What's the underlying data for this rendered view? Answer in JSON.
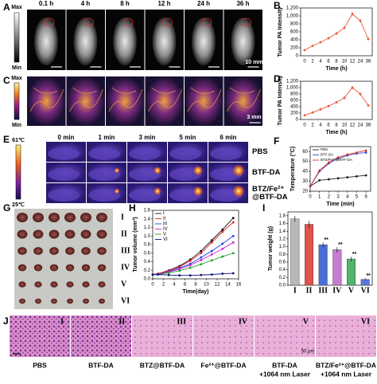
{
  "panel_labels": [
    "A",
    "B",
    "C",
    "D",
    "E",
    "F",
    "G",
    "H",
    "I",
    "J"
  ],
  "panel_a": {
    "times": [
      "0.1 h",
      "4 h",
      "8 h",
      "12 h",
      "24 h",
      "36 h"
    ],
    "colorbar": [
      "Max",
      "Min"
    ],
    "scale_bar": "10 mm"
  },
  "panel_c": {
    "colorbar": [
      "Max",
      "Min"
    ],
    "scale_bar": "3 mm"
  },
  "panel_e": {
    "times": [
      "0 min",
      "1 min",
      "3 min",
      "5 min",
      "6 min"
    ],
    "colorbar": [
      "61℃",
      "25℃"
    ],
    "rows": [
      [
        "PBS"
      ],
      [
        "BTF-DA"
      ],
      [
        "BTZ/Fe²⁺",
        "@BTF-DA"
      ]
    ]
  },
  "panel_g": {
    "groups": [
      "I",
      "II",
      "III",
      "IV",
      "V",
      "VI"
    ]
  },
  "panel_j": {
    "groups": [
      "I",
      "II",
      "III",
      "IV",
      "V",
      "VI"
    ],
    "scale_bar": "50 μm",
    "captions": [
      [
        "PBS"
      ],
      [
        "BTF-DA"
      ],
      [
        "BTZ@BTF-DA"
      ],
      [
        "Fe²⁺@BTF-DA"
      ],
      [
        "BTF-DA",
        "+1064 nm Laser"
      ],
      [
        "BTZ/Fe²⁺@BTF-DA",
        "+1064 nm Laser"
      ]
    ]
  },
  "chart_data": [
    {
      "type": "line",
      "y_label": "Tumor PA Intensity",
      "x_label": "Time (h)",
      "categories": [
        "0",
        "2",
        "4",
        "6",
        "8",
        "10",
        "12",
        "24",
        "36"
      ],
      "values": [
        140,
        250,
        340,
        440,
        560,
        700,
        1050,
        880,
        420
      ],
      "errors": [
        20,
        25,
        30,
        35,
        40,
        45,
        60,
        50,
        40
      ],
      "color": "#e8593c",
      "ylim": [
        0,
        1200
      ],
      "yticks": [
        0,
        200,
        400,
        600,
        800,
        {
          "value": 1000,
          "label": "1,000"
        },
        {
          "value": 1200,
          "label": "1,200"
        }
      ]
    },
    {
      "type": "line",
      "y_label": "Tumor PA Intensity",
      "x_label": "Time (h)",
      "categories": [
        "0",
        "2",
        "4",
        "6",
        "8",
        "10",
        "12",
        "24",
        "36"
      ],
      "values": [
        130,
        220,
        320,
        420,
        540,
        680,
        1000,
        800,
        440
      ],
      "errors": [
        20,
        25,
        30,
        35,
        40,
        45,
        60,
        50,
        40
      ],
      "color": "#e8593c",
      "ylim": [
        0,
        1200
      ],
      "yticks": [
        0,
        200,
        400,
        600,
        800,
        {
          "value": 1000,
          "label": "1,000"
        },
        {
          "value": 1200,
          "label": "1,200"
        }
      ]
    },
    {
      "type": "line",
      "y_label": "Temperature (°C)",
      "x_label": "Time (min)",
      "x": [
        0,
        1,
        2,
        3,
        4,
        5,
        6
      ],
      "xlim": [
        0,
        6.5
      ],
      "xticks": [
        0,
        1,
        2,
        3,
        4,
        5,
        6
      ],
      "ylim": [
        20,
        65
      ],
      "yticks": [
        20,
        30,
        40,
        50,
        60
      ],
      "legend": "upper left",
      "series": [
        {
          "name": "PBS",
          "color": "#222222",
          "values": [
            25,
            31,
            32,
            33,
            34,
            35,
            36
          ]
        },
        {
          "name": "BTF-DA",
          "color": "#3050d0",
          "values": [
            25,
            40,
            48,
            53,
            56,
            58,
            59
          ]
        },
        {
          "name": "BTZ/Fe²⁺@BTF-DA",
          "color": "#e03030",
          "values": [
            25,
            41,
            49,
            54,
            57,
            59,
            61
          ]
        }
      ]
    },
    {
      "type": "line",
      "y_label": "Tumor volume (mm³)",
      "x_label": "Time(day)",
      "x": [
        0,
        1,
        3,
        5,
        7,
        9,
        11,
        13,
        15
      ],
      "xlim": [
        0,
        16
      ],
      "xticks": [
        0,
        2,
        4,
        6,
        8,
        10,
        12,
        14,
        16
      ],
      "ylim": [
        0,
        1.6
      ],
      "yticks": [
        {
          "value": 0,
          "label": "0.0"
        },
        0.2,
        0.4,
        0.6,
        0.8,
        {
          "value": 1,
          "label": "1.0"
        },
        1.2,
        1.4,
        1.6
      ],
      "legend": "upper left",
      "series": [
        {
          "name": "I",
          "color": "#111111",
          "values": [
            0.1,
            0.12,
            0.2,
            0.3,
            0.45,
            0.65,
            0.9,
            1.15,
            1.42
          ]
        },
        {
          "name": "II",
          "color": "#e02020",
          "values": [
            0.1,
            0.12,
            0.19,
            0.28,
            0.42,
            0.6,
            0.85,
            1.1,
            1.32
          ]
        },
        {
          "name": "III",
          "color": "#2040e0",
          "values": [
            0.1,
            0.11,
            0.17,
            0.25,
            0.35,
            0.5,
            0.65,
            0.82,
            1.0
          ]
        },
        {
          "name": "IV",
          "color": "#d020d0",
          "values": [
            0.1,
            0.11,
            0.16,
            0.23,
            0.32,
            0.44,
            0.57,
            0.7,
            0.85
          ]
        },
        {
          "name": "V",
          "color": "#20a020",
          "values": [
            0.1,
            0.1,
            0.14,
            0.19,
            0.26,
            0.34,
            0.43,
            0.52,
            0.6
          ]
        },
        {
          "name": "VI",
          "color": "#101080",
          "values": [
            0.1,
            0.1,
            0.09,
            0.08,
            0.08,
            0.09,
            0.1,
            0.12,
            0.13
          ]
        }
      ]
    },
    {
      "type": "bar",
      "y_label": "Tumor weight (g)",
      "categories": [
        "I",
        "II",
        "III",
        "IV",
        "V",
        "VI"
      ],
      "values": [
        1.72,
        1.58,
        1.05,
        0.92,
        0.68,
        0.15
      ],
      "errors": [
        0.08,
        0.09,
        0.06,
        0.07,
        0.06,
        0.03
      ],
      "significance": [
        null,
        null,
        "**",
        "**",
        "**",
        "**"
      ],
      "colors": [
        "#b8b8b8",
        "#e0524a",
        "#4a6fd6",
        "#c77bd1",
        "#52b36b",
        "#5b78e0"
      ],
      "ylim": [
        0,
        1.9
      ],
      "yticks": [
        {
          "value": 0,
          "label": "0.0"
        },
        0.2,
        0.4,
        0.6,
        0.8,
        {
          "value": 1,
          "label": "1.0"
        },
        1.2,
        1.4,
        1.6,
        1.8
      ]
    }
  ]
}
